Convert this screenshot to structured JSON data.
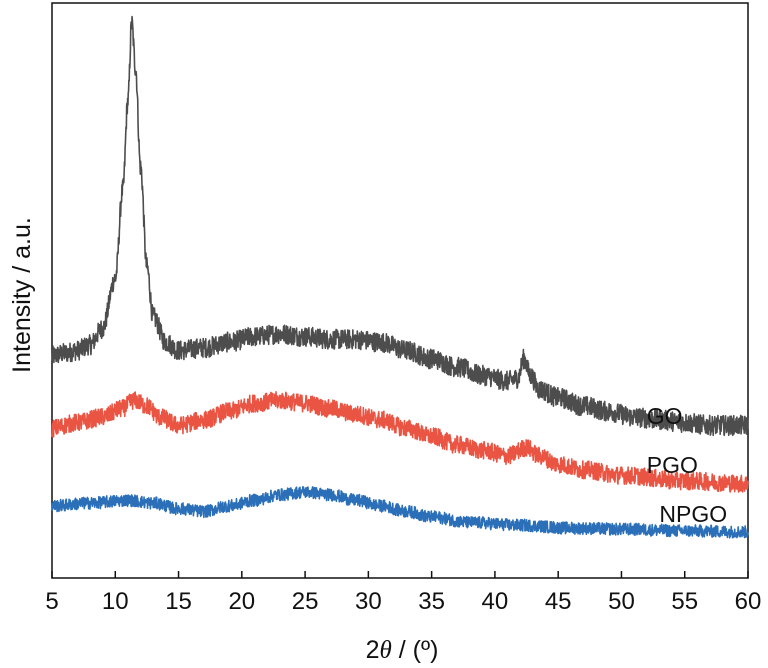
{
  "chart_data": {
    "type": "line",
    "title": "",
    "xlabel_prefix": "2",
    "xlabel_symbol": "θ",
    "xlabel_suffix": " / (º)",
    "ylabel": "Intensity / a.u.",
    "xlim": [
      5,
      60
    ],
    "xticks": [
      5,
      10,
      15,
      20,
      25,
      30,
      35,
      40,
      45,
      50,
      55,
      60
    ],
    "yticks_shown": false,
    "ylim": [
      0,
      100
    ],
    "grid": false,
    "legend": "inline labels at right",
    "series": [
      {
        "name": "GO",
        "color": "#4d4d4d",
        "noise": 1.8,
        "points": [
          [
            5,
            40
          ],
          [
            6,
            40.5
          ],
          [
            7,
            41
          ],
          [
            8,
            42
          ],
          [
            9,
            45
          ],
          [
            10,
            54
          ],
          [
            10.6,
            70
          ],
          [
            11,
            86
          ],
          [
            11.3,
            100
          ],
          [
            11.6,
            92
          ],
          [
            12,
            74
          ],
          [
            12.5,
            56
          ],
          [
            13,
            47
          ],
          [
            14,
            42.5
          ],
          [
            15,
            41
          ],
          [
            17,
            41.5
          ],
          [
            19,
            42.5
          ],
          [
            21,
            43.5
          ],
          [
            23,
            44
          ],
          [
            25,
            43.5
          ],
          [
            27,
            43
          ],
          [
            29,
            43
          ],
          [
            31,
            42.5
          ],
          [
            33,
            41
          ],
          [
            35,
            39.5
          ],
          [
            37,
            38
          ],
          [
            39,
            36.5
          ],
          [
            41,
            35.5
          ],
          [
            41.8,
            36
          ],
          [
            42.3,
            39.5
          ],
          [
            42.8,
            36.5
          ],
          [
            43.5,
            34
          ],
          [
            45,
            32.5
          ],
          [
            47,
            31
          ],
          [
            49,
            30
          ],
          [
            51,
            29
          ],
          [
            53,
            28.5
          ],
          [
            55,
            28
          ],
          [
            57,
            27.5
          ],
          [
            60,
            27.5
          ]
        ]
      },
      {
        "name": "PGO",
        "color": "#ea5443",
        "noise": 1.6,
        "points": [
          [
            5,
            27
          ],
          [
            7,
            28
          ],
          [
            9,
            29
          ],
          [
            10.5,
            30.5
          ],
          [
            11.5,
            32
          ],
          [
            12.5,
            31
          ],
          [
            13.5,
            29
          ],
          [
            15,
            27.5
          ],
          [
            17,
            28.5
          ],
          [
            19,
            30
          ],
          [
            21,
            31.5
          ],
          [
            23,
            32
          ],
          [
            25,
            31.5
          ],
          [
            27,
            30.5
          ],
          [
            29,
            29.5
          ],
          [
            31,
            28.5
          ],
          [
            33,
            27
          ],
          [
            35,
            25.5
          ],
          [
            37,
            24
          ],
          [
            39,
            23
          ],
          [
            41,
            22
          ],
          [
            42.5,
            23.5
          ],
          [
            43.5,
            22
          ],
          [
            45,
            20.5
          ],
          [
            47,
            19.5
          ],
          [
            50,
            18.5
          ],
          [
            55,
            17.5
          ],
          [
            60,
            17
          ]
        ]
      },
      {
        "name": "NPGO",
        "color": "#2a6fb8",
        "noise": 1.1,
        "points": [
          [
            5,
            13
          ],
          [
            8,
            13.5
          ],
          [
            11,
            14
          ],
          [
            13,
            13.5
          ],
          [
            15,
            12.5
          ],
          [
            17,
            12
          ],
          [
            19,
            13
          ],
          [
            21,
            14
          ],
          [
            23,
            15
          ],
          [
            25,
            15.5
          ],
          [
            27,
            15
          ],
          [
            29,
            14
          ],
          [
            31,
            13
          ],
          [
            33,
            12
          ],
          [
            35,
            11
          ],
          [
            38,
            10
          ],
          [
            42,
            9.5
          ],
          [
            46,
            9
          ],
          [
            50,
            8.8
          ],
          [
            55,
            8.5
          ],
          [
            60,
            8.3
          ]
        ]
      }
    ]
  }
}
